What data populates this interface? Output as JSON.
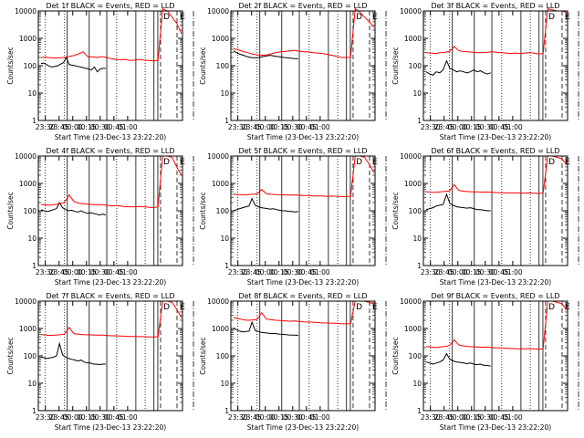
{
  "chart_data": [
    {
      "type": "line",
      "title": "Det 1f BLACK = Events, RED = LLD",
      "detector": "1f",
      "xlabel": "Start Time (23-Dec-13 23:22:20)",
      "ylabel": "Counts/sec",
      "x_ticks": [
        "23:30",
        "23:45",
        "00:00",
        "00:15",
        "00:30",
        "00:45",
        "01:00"
      ],
      "y_ticks": [
        "1",
        "10",
        "100",
        "1000",
        "10000"
      ],
      "y_scale": "log",
      "ylim": [
        1,
        10000
      ],
      "series": [
        {
          "name": "Events",
          "color": "#000000",
          "values": [
            120,
            125,
            110,
            95,
            90,
            95,
            100,
            115,
            130,
            200,
            110,
            105,
            100,
            95,
            90,
            85,
            80,
            75,
            70,
            90,
            60,
            75,
            80,
            80
          ]
        },
        {
          "name": "LLD",
          "color": "#ff0000",
          "values": [
            200,
            205,
            195,
            190,
            195,
            200,
            215,
            235,
            270,
            320,
            210,
            210,
            200,
            215,
            200,
            180,
            170,
            165,
            170,
            155,
            160,
            170,
            160,
            155,
            150,
            158,
            12000,
            10000,
            6000,
            3500,
            1500
          ]
        }
      ]
    },
    {
      "type": "line",
      "title": "Det 2f BLACK = Events, RED = LLD",
      "detector": "2f",
      "xlabel": "Start Time (23-Dec-13 23:22:20)",
      "ylabel": "Counts/sec",
      "x_ticks": [
        "23:30",
        "23:45",
        "00:00",
        "00:15",
        "00:30",
        "00:45",
        "01:00"
      ],
      "y_ticks": [
        "1",
        "10",
        "100",
        "1000",
        "10000"
      ],
      "y_scale": "log",
      "ylim": [
        1,
        10000
      ],
      "series": [
        {
          "name": "Events",
          "color": "#000000",
          "values": [
            350,
            300,
            270,
            250,
            230,
            210,
            200,
            195,
            195,
            200,
            210,
            220,
            230,
            240,
            230,
            220,
            215,
            205,
            200,
            195,
            190,
            185,
            180,
            180
          ]
        },
        {
          "name": "LLD",
          "color": "#ff0000",
          "values": [
            420,
            380,
            330,
            300,
            270,
            250,
            240,
            245,
            270,
            300,
            320,
            330,
            350,
            360,
            340,
            320,
            320,
            300,
            290,
            280,
            260,
            240,
            220,
            200,
            200,
            200,
            12000,
            9000,
            6000,
            4000,
            2500
          ]
        }
      ]
    },
    {
      "type": "line",
      "title": "Det 3f BLACK = Events, RED = LLD",
      "detector": "3f",
      "xlabel": "Start Time (23-Dec-13 23:22:20)",
      "ylabel": "Counts/sec",
      "x_ticks": [
        "23:30",
        "23:45",
        "00:00",
        "00:15",
        "00:30",
        "00:45",
        "01:00"
      ],
      "y_ticks": [
        "1",
        "10",
        "100",
        "1000",
        "10000"
      ],
      "y_scale": "log",
      "ylim": [
        1,
        10000
      ],
      "series": [
        {
          "name": "Events",
          "color": "#000000",
          "values": [
            60,
            50,
            45,
            60,
            55,
            70,
            150,
            80,
            70,
            60,
            65,
            60,
            55,
            60,
            70,
            60,
            65,
            55,
            50,
            55
          ]
        },
        {
          "name": "LLD",
          "color": "#ff0000",
          "values": [
            300,
            290,
            280,
            300,
            310,
            330,
            500,
            350,
            330,
            320,
            310,
            300,
            300,
            310,
            320,
            310,
            300,
            290,
            280,
            290,
            280,
            290,
            300,
            290,
            270,
            280,
            12000,
            11000,
            10000,
            10000,
            9000
          ]
        }
      ]
    },
    {
      "type": "line",
      "title": "Det 4f BLACK = Events, RED = LLD",
      "detector": "4f",
      "xlabel": "Start Time (23-Dec-13 23:22:20)",
      "ylabel": "Counts/sec",
      "x_ticks": [
        "23:30",
        "23:45",
        "00:00",
        "00:15",
        "00:30",
        "00:45",
        "01:00"
      ],
      "y_ticks": [
        "1",
        "10",
        "100",
        "1000",
        "10000"
      ],
      "y_scale": "log",
      "ylim": [
        1,
        10000
      ],
      "series": [
        {
          "name": "Events",
          "color": "#000000",
          "values": [
            110,
            100,
            95,
            100,
            110,
            120,
            200,
            130,
            110,
            100,
            105,
            95,
            90,
            100,
            90,
            80,
            85,
            80,
            75,
            70,
            75,
            70
          ]
        },
        {
          "name": "LLD",
          "color": "#ff0000",
          "values": [
            170,
            165,
            160,
            170,
            180,
            200,
            380,
            220,
            190,
            180,
            175,
            170,
            165,
            170,
            160,
            150,
            155,
            150,
            140,
            140,
            140,
            145,
            140,
            135,
            130,
            140,
            10000,
            10000,
            9000,
            4000,
            2000
          ]
        }
      ]
    },
    {
      "type": "line",
      "title": "Det 5f BLACK = Events, RED = LLD",
      "detector": "5f",
      "xlabel": "Start Time (23-Dec-13 23:22:20)",
      "ylabel": "Counts/sec",
      "x_ticks": [
        "23:30",
        "23:45",
        "00:00",
        "00:15",
        "00:30",
        "00:45",
        "01:00"
      ],
      "y_ticks": [
        "1",
        "10",
        "100",
        "1000",
        "10000"
      ],
      "y_scale": "log",
      "ylim": [
        1,
        10000
      ],
      "series": [
        {
          "name": "Events",
          "color": "#000000",
          "values": [
            100,
            110,
            120,
            130,
            140,
            150,
            280,
            160,
            140,
            130,
            125,
            120,
            115,
            120,
            110,
            105,
            100,
            100,
            95,
            95,
            90,
            95
          ]
        },
        {
          "name": "LLD",
          "color": "#ff0000",
          "values": [
            400,
            390,
            380,
            390,
            400,
            410,
            600,
            420,
            400,
            390,
            385,
            380,
            375,
            380,
            370,
            360,
            360,
            350,
            350,
            350,
            340,
            345,
            340,
            330,
            330,
            340,
            10000,
            10000,
            9000,
            5000,
            2500
          ]
        }
      ]
    },
    {
      "type": "line",
      "title": "Det 6f BLACK = Events, RED = LLD",
      "detector": "6f",
      "xlabel": "Start Time (23-Dec-13 23:22:20)",
      "ylabel": "Counts/sec",
      "x_ticks": [
        "23:30",
        "23:45",
        "00:00",
        "00:15",
        "00:30",
        "00:45",
        "01:00"
      ],
      "y_ticks": [
        "1",
        "10",
        "100",
        "1000",
        "10000"
      ],
      "y_scale": "log",
      "ylim": [
        1,
        10000
      ],
      "series": [
        {
          "name": "Events",
          "color": "#000000",
          "values": [
            110,
            120,
            130,
            150,
            160,
            170,
            400,
            180,
            160,
            140,
            135,
            130,
            125,
            130,
            120,
            110,
            110,
            105,
            100,
            100
          ]
        },
        {
          "name": "LLD",
          "color": "#ff0000",
          "values": [
            500,
            480,
            470,
            490,
            510,
            530,
            900,
            550,
            520,
            500,
            495,
            490,
            480,
            485,
            475,
            460,
            460,
            450,
            450,
            450,
            445,
            440,
            450,
            440,
            430,
            440,
            10000,
            10000,
            9000,
            8000,
            5000
          ]
        }
      ]
    },
    {
      "type": "line",
      "title": "Det 7f BLACK = Events, RED = LLD",
      "detector": "7f",
      "xlabel": "Start Time (23-Dec-13 23:22:20)",
      "ylabel": "Counts/sec",
      "x_ticks": [
        "23:30",
        "23:45",
        "00:00",
        "00:15",
        "00:30",
        "00:45",
        "01:00"
      ],
      "y_ticks": [
        "1",
        "10",
        "100",
        "1000",
        "10000"
      ],
      "y_scale": "log",
      "ylim": [
        1,
        10000
      ],
      "series": [
        {
          "name": "Events",
          "color": "#000000",
          "values": [
            90,
            85,
            80,
            85,
            90,
            100,
            280,
            110,
            90,
            80,
            75,
            70,
            65,
            70,
            60,
            55,
            55,
            50,
            50,
            48,
            50,
            50
          ]
        },
        {
          "name": "LLD",
          "color": "#ff0000",
          "values": [
            600,
            580,
            560,
            570,
            590,
            620,
            1100,
            650,
            620,
            600,
            590,
            580,
            570,
            580,
            560,
            540,
            540,
            530,
            520,
            510,
            510,
            505,
            500,
            490,
            490,
            500,
            10000,
            10000,
            9000,
            5000,
            2500
          ]
        }
      ]
    },
    {
      "type": "line",
      "title": "Det 8f BLACK = Events, RED = LLD",
      "detector": "8f",
      "xlabel": "Start Time (23-Dec-13 23:22:20)",
      "ylabel": "Counts/sec",
      "x_ticks": [
        "23:30",
        "23:45",
        "00:00",
        "00:15",
        "00:30",
        "00:45",
        "01:00"
      ],
      "y_ticks": [
        "1",
        "10",
        "100",
        "1000",
        "10000"
      ],
      "y_scale": "log",
      "ylim": [
        1,
        10000
      ],
      "series": [
        {
          "name": "Events",
          "color": "#000000",
          "values": [
            1000,
            900,
            800,
            750,
            780,
            800,
            1700,
            850,
            780,
            720,
            700,
            680,
            650,
            660,
            640,
            620,
            610,
            600,
            580,
            570,
            570,
            560
          ]
        },
        {
          "name": "LLD",
          "color": "#ff0000",
          "values": [
            2500,
            2300,
            2100,
            2000,
            2050,
            2100,
            3800,
            2200,
            2100,
            2000,
            1950,
            1900,
            1850,
            1870,
            1800,
            1750,
            1720,
            1700,
            1650,
            1600,
            1580,
            1560,
            1550,
            1500,
            1480,
            1500,
            10000,
            10000,
            10000,
            9000,
            8000
          ]
        }
      ]
    },
    {
      "type": "line",
      "title": "Det 9f BLACK = Events, RED = LLD",
      "detector": "9f",
      "xlabel": "Start Time (23-Dec-13 23:22:20)",
      "ylabel": "Counts/sec",
      "x_ticks": [
        "23:30",
        "23:45",
        "00:00",
        "00:15",
        "00:30",
        "00:45",
        "01:00"
      ],
      "y_ticks": [
        "1",
        "10",
        "100",
        "1000",
        "10000"
      ],
      "y_scale": "log",
      "ylim": [
        1,
        10000
      ],
      "series": [
        {
          "name": "Events",
          "color": "#000000",
          "values": [
            60,
            55,
            50,
            55,
            60,
            70,
            120,
            75,
            65,
            60,
            58,
            55,
            52,
            55,
            50,
            48,
            50,
            45,
            45,
            42
          ]
        },
        {
          "name": "LLD",
          "color": "#ff0000",
          "values": [
            220,
            210,
            200,
            210,
            220,
            240,
            380,
            250,
            230,
            220,
            215,
            210,
            205,
            210,
            200,
            195,
            195,
            190,
            185,
            185,
            180,
            180,
            185,
            180,
            175,
            180,
            10000,
            10000,
            9000,
            8000,
            5000
          ]
        }
      ]
    }
  ],
  "markers": {
    "solid_t": [
      23.9,
      24.3,
      24.62,
      25.15,
      25.48,
      25.55
    ],
    "dotted_t": [
      23.5,
      23.85,
      24.8,
      25.32
    ],
    "dashed_t": [
      25.6,
      25.9
    ],
    "dashdot_t": [
      26.2
    ],
    "letters": [
      {
        "t": 25.62,
        "text": "D"
      },
      {
        "t": 25.92,
        "text": "E"
      }
    ]
  },
  "x_range_hours": [
    23.3722,
    26.0
  ]
}
